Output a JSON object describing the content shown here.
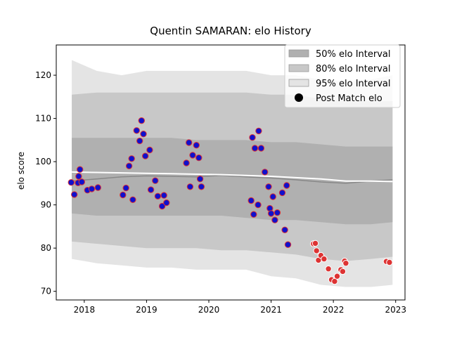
{
  "chart_data": {
    "type": "scatter",
    "title": "Quentin SAMARAN: elo History",
    "xlabel": "",
    "ylabel": "elo score",
    "xlim": [
      2017.55,
      2023.15
    ],
    "ylim": [
      68,
      127
    ],
    "x_ticks": [
      2018,
      2019,
      2020,
      2021,
      2022,
      2023
    ],
    "x_tick_labels": [
      "2018",
      "2019",
      "2020",
      "2021",
      "2022",
      "2023"
    ],
    "y_ticks": [
      70,
      80,
      90,
      100,
      110,
      120
    ],
    "y_tick_labels": [
      "70",
      "80",
      "90",
      "100",
      "110",
      "120"
    ],
    "grid": false,
    "legend_position": "top-right",
    "legend": [
      {
        "label": "50% elo Interval",
        "kind": "patch",
        "color": "#b0b0b0"
      },
      {
        "label": "80% elo Interval",
        "kind": "patch",
        "color": "#c8c8c8"
      },
      {
        "label": "95% elo Interval",
        "kind": "patch",
        "color": "#e4e4e4"
      },
      {
        "label": "Post Match elo",
        "kind": "marker",
        "color": "#000000"
      }
    ],
    "bands": {
      "x": [
        2017.8,
        2018.2,
        2018.6,
        2019.0,
        2019.4,
        2019.8,
        2020.2,
        2020.6,
        2021.0,
        2021.4,
        2021.8,
        2022.2,
        2022.6,
        2022.95
      ],
      "p95_upper": [
        123.5,
        121,
        120,
        121,
        121,
        121,
        121,
        121,
        120,
        120,
        119,
        118.5,
        119,
        120
      ],
      "p95_lower": [
        77.5,
        76.5,
        76,
        75.5,
        75.5,
        75,
        75,
        75,
        73.5,
        73,
        71.5,
        71,
        71,
        71.5
      ],
      "p80_upper": [
        115.5,
        116,
        116,
        116,
        116,
        116,
        116,
        116,
        115.5,
        115.5,
        114.5,
        114,
        114,
        114
      ],
      "p80_lower": [
        81.5,
        81,
        80.5,
        80,
        80,
        80,
        79.5,
        79.5,
        79,
        78.5,
        77.5,
        77,
        77.5,
        78
      ],
      "p50_upper": [
        105.5,
        105.5,
        105.5,
        105.5,
        105.5,
        105,
        105,
        105,
        104.5,
        104.5,
        104,
        103.5,
        103.5,
        103.5
      ],
      "p50_lower": [
        88,
        87.5,
        87.5,
        87.5,
        87.5,
        87.5,
        87.5,
        87,
        86.5,
        86.5,
        86,
        85.5,
        85.5,
        86
      ]
    },
    "mean_line": {
      "color": "#888888",
      "x": [
        2017.8,
        2018.2,
        2018.6,
        2019.0,
        2019.4,
        2019.8,
        2020.2,
        2020.6,
        2021.0,
        2021.4,
        2021.8,
        2022.2,
        2022.6,
        2022.95
      ],
      "y": [
        95.5,
        96,
        96.5,
        96.7,
        96.6,
        96.5,
        96.8,
        96.5,
        96.2,
        95.8,
        95.3,
        95,
        95.5,
        95.8
      ]
    },
    "white_line": {
      "color": "#ffffff",
      "x": [
        2017.8,
        2018.2,
        2018.6,
        2019.0,
        2019.4,
        2019.8,
        2020.2,
        2020.6,
        2021.0,
        2021.4,
        2021.8,
        2022.2,
        2022.6,
        2022.95
      ],
      "y": [
        97.6,
        97.5,
        97.4,
        97.3,
        97.2,
        97.1,
        97.0,
        96.8,
        96.6,
        96.3,
        96.0,
        95.5,
        95.5,
        95.4
      ]
    },
    "series": [
      {
        "marker_fill": "#1010cc",
        "marker_edge": "#dd3333",
        "x": [
          2017.79,
          2017.84,
          2017.9,
          2017.91,
          2017.93,
          2017.96,
          2018.05,
          2018.12,
          2018.22,
          2018.62,
          2018.67,
          2018.72,
          2018.76,
          2018.78,
          2018.84,
          2018.89,
          2018.92,
          2018.95,
          2018.98,
          2019.05,
          2019.07,
          2019.14,
          2019.18,
          2019.25,
          2019.28,
          2019.32,
          2019.64,
          2019.68,
          2019.7,
          2019.74,
          2019.8,
          2019.84,
          2019.86,
          2019.88,
          2020.68,
          2020.7,
          2020.72,
          2020.74,
          2020.79,
          2020.8,
          2020.84,
          2020.9,
          2020.96,
          2020.98,
          2021.0,
          2021.03,
          2021.06,
          2021.1,
          2021.18,
          2021.22,
          2021.25,
          2021.27
        ],
        "y": [
          95.2,
          92.4,
          95.1,
          96.6,
          98.2,
          95.3,
          93.4,
          93.7,
          94.0,
          92.3,
          93.9,
          99.0,
          100.7,
          91.2,
          107.2,
          104.8,
          109.5,
          106.4,
          101.3,
          102.7,
          93.5,
          95.6,
          92.0,
          89.7,
          92.2,
          90.5,
          99.7,
          104.4,
          94.2,
          101.5,
          103.8,
          100.9,
          96.0,
          94.2,
          91.0,
          105.6,
          87.8,
          103.1,
          90.0,
          107.1,
          103.1,
          97.6,
          94.2,
          89.2,
          88.0,
          91.9,
          86.5,
          88.2,
          92.8,
          84.2,
          94.5,
          80.8
        ]
      },
      {
        "marker_fill": "#dd3333",
        "marker_edge": "#ffffff",
        "x": [
          2021.68,
          2021.71,
          2021.73,
          2021.76,
          2021.8,
          2021.85,
          2021.92,
          2021.97,
          2022.02,
          2022.06,
          2022.12,
          2022.15,
          2022.18,
          2022.2,
          2022.85,
          2022.9
        ],
        "y": [
          81.0,
          81.1,
          79.4,
          77.2,
          78.3,
          77.5,
          75.2,
          72.7,
          72.3,
          73.5,
          75.0,
          74.6,
          77.0,
          76.5,
          76.9,
          76.7
        ]
      }
    ]
  }
}
